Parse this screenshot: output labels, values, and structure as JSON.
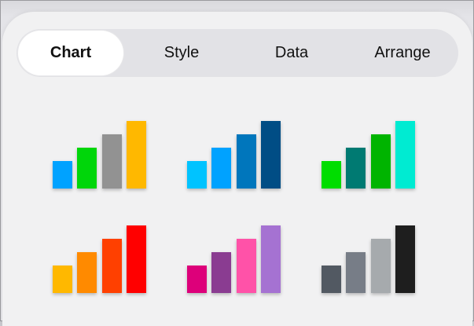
{
  "tabs": [
    {
      "label": "Chart",
      "selected": true
    },
    {
      "label": "Style",
      "selected": false
    },
    {
      "label": "Data",
      "selected": false
    },
    {
      "label": "Arrange",
      "selected": false
    }
  ],
  "chart_styles": [
    {
      "name": "multicolor",
      "colors": [
        "#00a2ff",
        "#00d60a",
        "#929292",
        "#ffb800"
      ]
    },
    {
      "name": "blue",
      "colors": [
        "#00c3ff",
        "#00a2ff",
        "#0076bc",
        "#004d85"
      ]
    },
    {
      "name": "green",
      "colors": [
        "#00dd00",
        "#007a72",
        "#00b400",
        "#00ebd2"
      ]
    },
    {
      "name": "warm",
      "colors": [
        "#ffb800",
        "#ff8a00",
        "#ff4000",
        "#ff0000"
      ]
    },
    {
      "name": "pink-purple",
      "colors": [
        "#dd007a",
        "#8a3c91",
        "#ff52a8",
        "#a572d2"
      ]
    },
    {
      "name": "gray",
      "colors": [
        "#525962",
        "#777d87",
        "#a6aaad",
        "#1e1e1e"
      ]
    }
  ]
}
